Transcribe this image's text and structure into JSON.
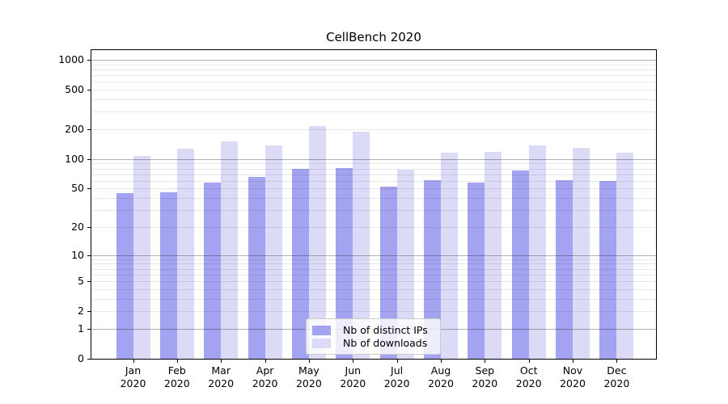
{
  "chart_data": {
    "type": "bar",
    "title": "CellBench 2020",
    "categories": [
      "Jan 2020",
      "Feb 2020",
      "Mar 2020",
      "Apr 2020",
      "May 2020",
      "Jun 2020",
      "Jul 2020",
      "Aug 2020",
      "Sep 2020",
      "Oct 2020",
      "Nov 2020",
      "Dec 2020"
    ],
    "series": [
      {
        "name": "Nb of distinct IPs",
        "key": "distinct-ips",
        "color": "#a3a3f1",
        "values": [
          45,
          46,
          58,
          66,
          79,
          81,
          52,
          61,
          58,
          76,
          61,
          60
        ]
      },
      {
        "name": "Nb of downloads",
        "key": "downloads",
        "color": "#dbdbf8",
        "values": [
          108,
          128,
          152,
          137,
          215,
          188,
          78,
          115,
          118,
          137,
          129,
          115
        ]
      }
    ],
    "yscale": "log1p",
    "ylim": [
      0,
      1250
    ],
    "yticks": [
      0,
      1,
      2,
      5,
      10,
      20,
      50,
      100,
      200,
      500,
      1000
    ],
    "xlabel": "",
    "ylabel": "",
    "grid": true,
    "legend_position": "lower center",
    "colors": {
      "major_grid": "#b3b3b3",
      "minor_grid": "#e8e8e8",
      "axis": "#000000",
      "background": "#ffffff"
    }
  }
}
